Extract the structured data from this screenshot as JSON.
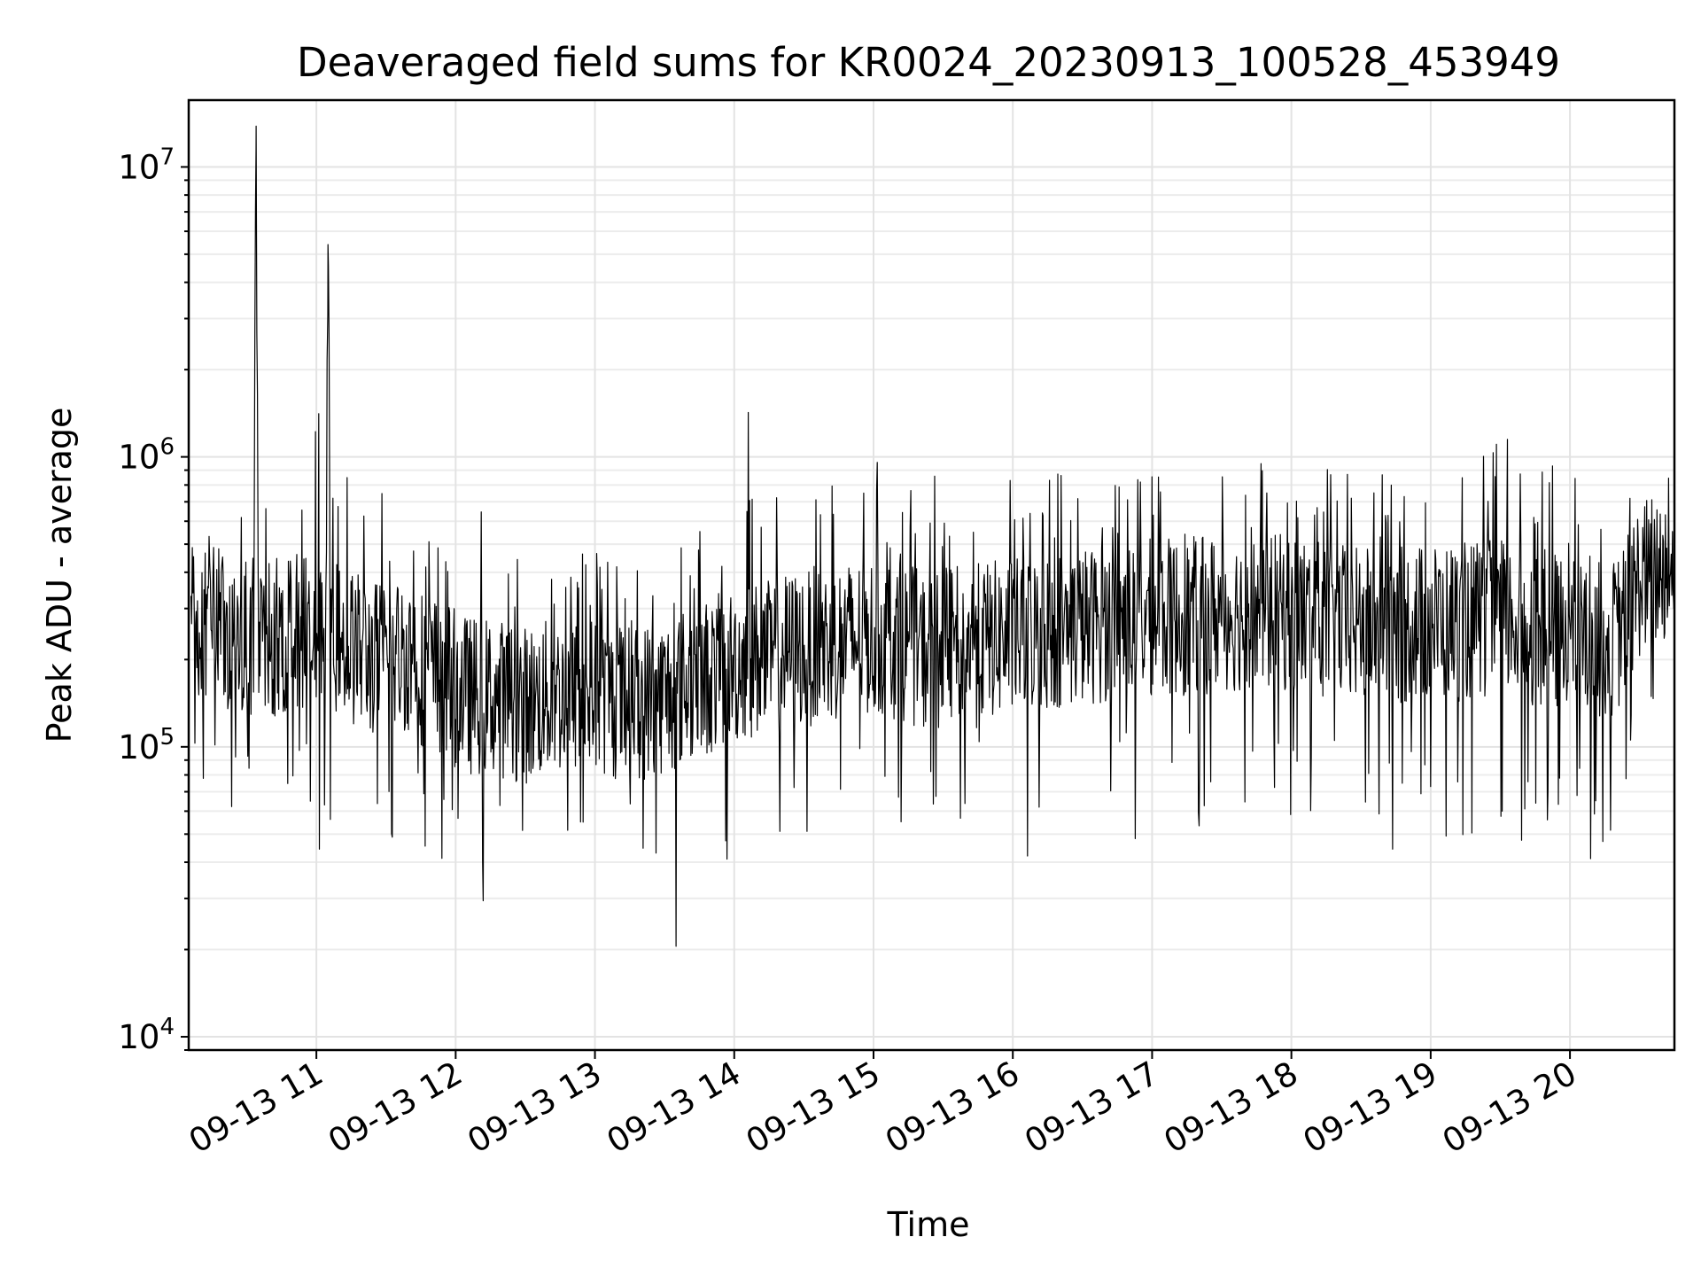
{
  "chart_data": {
    "type": "line",
    "title": "Deaveraged field sums for KR0024_20230913_100528_453949",
    "xlabel": "Time",
    "ylabel": "Peak ADU - average",
    "yscale": "log",
    "ylim": [
      9000,
      17000000
    ],
    "y_ticks": [
      {
        "value": 10000,
        "base": "10",
        "exp": "4"
      },
      {
        "value": 100000,
        "base": "10",
        "exp": "5"
      },
      {
        "value": 1000000,
        "base": "10",
        "exp": "6"
      },
      {
        "value": 10000000,
        "base": "10",
        "exp": "7"
      }
    ],
    "xlim": [
      "2023-09-13 10:05",
      "2023-09-13 20:45"
    ],
    "x_ticks": [
      {
        "value": "2023-09-13 11:00",
        "label": "09-13 11"
      },
      {
        "value": "2023-09-13 12:00",
        "label": "09-13 12"
      },
      {
        "value": "2023-09-13 13:00",
        "label": "09-13 13"
      },
      {
        "value": "2023-09-13 14:00",
        "label": "09-13 14"
      },
      {
        "value": "2023-09-13 15:00",
        "label": "09-13 15"
      },
      {
        "value": "2023-09-13 16:00",
        "label": "09-13 16"
      },
      {
        "value": "2023-09-13 17:00",
        "label": "09-13 17"
      },
      {
        "value": "2023-09-13 18:00",
        "label": "09-13 18"
      },
      {
        "value": "2023-09-13 19:00",
        "label": "09-13 19"
      },
      {
        "value": "2023-09-13 20:00",
        "label": "09-13 20"
      }
    ],
    "grid": true,
    "series": [
      {
        "color": "#000000",
        "x": [
          "2023-09-13 10:06",
          "2023-09-13 10:15",
          "2023-09-13 10:25",
          "2023-09-13 10:33",
          "2023-09-13 10:34",
          "2023-09-13 10:35",
          "2023-09-13 10:45",
          "2023-09-13 10:56",
          "2023-09-13 11:00",
          "2023-09-13 11:04",
          "2023-09-13 11:05",
          "2023-09-13 11:06",
          "2023-09-13 11:15",
          "2023-09-13 11:25",
          "2023-09-13 11:40",
          "2023-09-13 11:45",
          "2023-09-13 12:00",
          "2023-09-13 12:06",
          "2023-09-13 12:15",
          "2023-09-13 12:30",
          "2023-09-13 12:45",
          "2023-09-13 13:00",
          "2023-09-13 13:16",
          "2023-09-13 13:30",
          "2023-09-13 13:45",
          "2023-09-13 14:00",
          "2023-09-13 14:05",
          "2023-09-13 14:15",
          "2023-09-13 14:20",
          "2023-09-13 14:30",
          "2023-09-13 14:45",
          "2023-09-13 15:00",
          "2023-09-13 15:15",
          "2023-09-13 15:22",
          "2023-09-13 15:30",
          "2023-09-13 15:45",
          "2023-09-13 16:00",
          "2023-09-13 16:15",
          "2023-09-13 16:30",
          "2023-09-13 16:45",
          "2023-09-13 17:00",
          "2023-09-13 17:15",
          "2023-09-13 17:30",
          "2023-09-13 17:45",
          "2023-09-13 18:00",
          "2023-09-13 18:15",
          "2023-09-13 18:30",
          "2023-09-13 18:45",
          "2023-09-13 19:00",
          "2023-09-13 19:15",
          "2023-09-13 19:30",
          "2023-09-13 19:45",
          "2023-09-13 20:00",
          "2023-09-13 20:10",
          "2023-09-13 20:20",
          "2023-09-13 20:30",
          "2023-09-13 20:44"
        ],
        "y": [
          280000,
          260000,
          250000,
          240000,
          11500000,
          230000,
          240000,
          260000,
          250000,
          230000,
          5400000,
          240000,
          220000,
          200000,
          210000,
          190000,
          160000,
          150000,
          150000,
          140000,
          150000,
          150000,
          140000,
          150000,
          170000,
          190000,
          200000,
          200000,
          210000,
          220000,
          230000,
          240000,
          230000,
          210000,
          220000,
          230000,
          240000,
          250000,
          260000,
          270000,
          280000,
          280000,
          290000,
          290000,
          290000,
          270000,
          260000,
          260000,
          270000,
          270000,
          280000,
          260000,
          240000,
          230000,
          240000,
          380000,
          430000
        ],
        "env_hi": [
          600000,
          550000,
          600000,
          800000,
          11500000,
          700000,
          800000,
          1000000,
          1500000,
          1300000,
          5400000,
          1200000,
          900000,
          800000,
          700000,
          650000,
          650000,
          700000,
          650000,
          500000,
          480000,
          520000,
          460000,
          500000,
          560000,
          750000,
          1600000,
          900000,
          850000,
          900000,
          850000,
          1000000,
          700000,
          1400000,
          800000,
          820000,
          850000,
          900000,
          1000000,
          850000,
          950000,
          900000,
          900000,
          1000000,
          900000,
          1000000,
          850000,
          900000,
          1000000,
          1100000,
          1400000,
          1000000,
          900000,
          700000,
          650000,
          1300000,
          900000
        ],
        "env_lo": [
          80000,
          70000,
          55000,
          40000,
          37000,
          60000,
          50000,
          60000,
          37000,
          65000,
          60000,
          55000,
          40000,
          30000,
          50000,
          40000,
          40000,
          20000,
          35000,
          40000,
          45000,
          40000,
          40000,
          13000,
          30000,
          40000,
          20000,
          55000,
          17000,
          50000,
          55000,
          50000,
          40000,
          30000,
          50000,
          60000,
          30000,
          45000,
          45000,
          50000,
          45000,
          60000,
          35000,
          45000,
          50000,
          50000,
          35000,
          45000,
          35000,
          50000,
          30000,
          50000,
          40000,
          40000,
          55000,
          120000,
          180000
        ]
      }
    ]
  }
}
